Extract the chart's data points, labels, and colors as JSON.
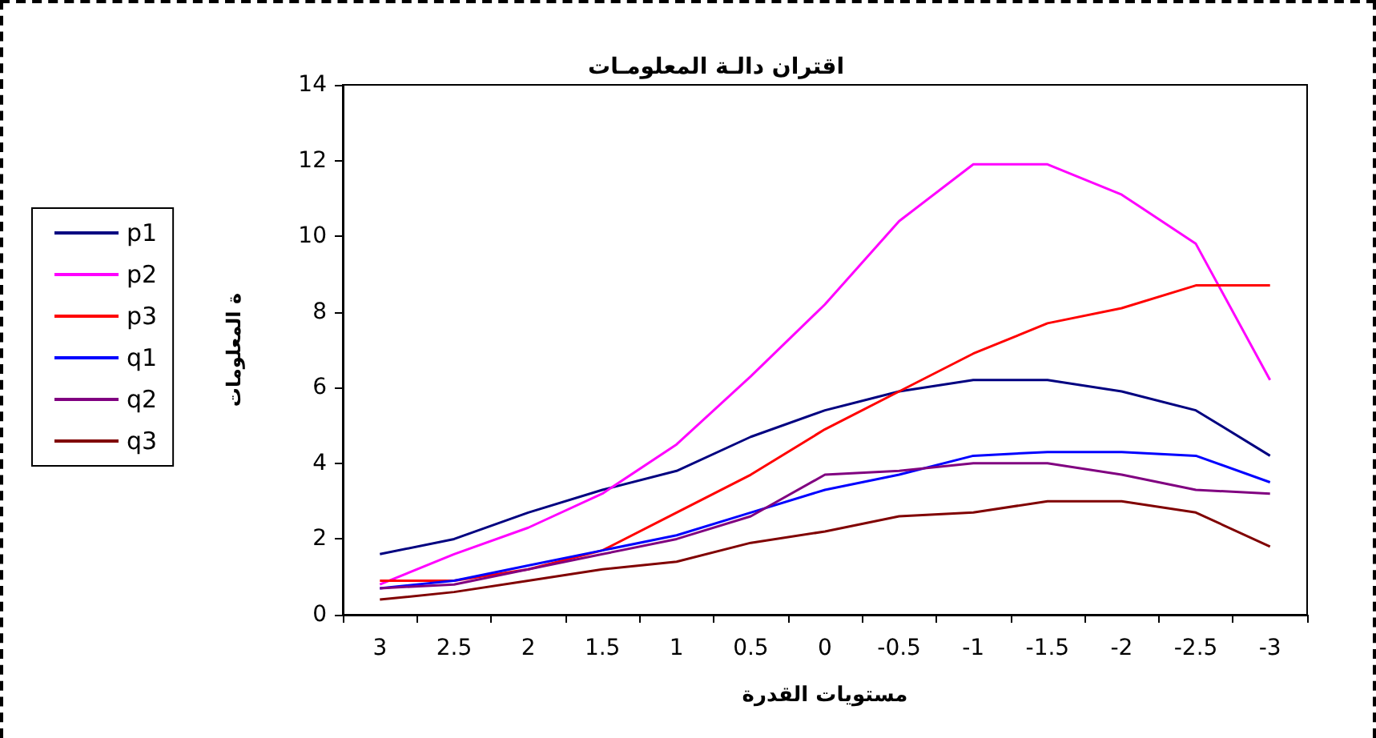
{
  "chart_data": {
    "type": "line",
    "title": "اقتران دالـة المعلومـات",
    "xlabel": "مستويات القدرة",
    "ylabel": "ة المعلومات",
    "categories": [
      "3",
      "2.5",
      "2",
      "1.5",
      "1",
      "0.5",
      "0",
      "-0.5",
      "-1",
      "-1.5",
      "-2",
      "-2.5",
      "-3"
    ],
    "series": [
      {
        "name": "p1",
        "color": "#000080",
        "values": [
          1.6,
          2.0,
          2.7,
          3.3,
          3.8,
          4.7,
          5.4,
          5.9,
          6.2,
          6.2,
          5.9,
          5.4,
          4.2
        ]
      },
      {
        "name": "p2",
        "color": "#ff00ff",
        "values": [
          0.8,
          1.6,
          2.3,
          3.2,
          4.5,
          6.3,
          8.2,
          10.4,
          11.9,
          11.9,
          11.1,
          9.8,
          6.2
        ]
      },
      {
        "name": "p3",
        "color": "#ff0000",
        "values": [
          0.9,
          0.9,
          1.2,
          1.7,
          2.7,
          3.7,
          4.9,
          5.9,
          6.9,
          7.7,
          8.1,
          8.7,
          8.7
        ]
      },
      {
        "name": "q1",
        "color": "#0000ff",
        "values": [
          0.7,
          0.9,
          1.3,
          1.7,
          2.1,
          2.7,
          3.3,
          3.7,
          4.2,
          4.3,
          4.3,
          4.2,
          3.5
        ]
      },
      {
        "name": "q2",
        "color": "#800080",
        "values": [
          0.7,
          0.8,
          1.2,
          1.6,
          2.0,
          2.6,
          3.7,
          3.8,
          4.0,
          4.0,
          3.7,
          3.3,
          3.2
        ]
      },
      {
        "name": "q3",
        "color": "#800000",
        "values": [
          0.4,
          0.6,
          0.9,
          1.2,
          1.4,
          1.9,
          2.2,
          2.6,
          2.7,
          3.0,
          3.0,
          2.7,
          1.8
        ]
      }
    ],
    "ylim": [
      0,
      14
    ],
    "yticks": [
      0,
      2,
      4,
      6,
      8,
      10,
      12,
      14
    ],
    "grid": false,
    "legend": "left",
    "marker": "none",
    "line_style": "solid"
  }
}
